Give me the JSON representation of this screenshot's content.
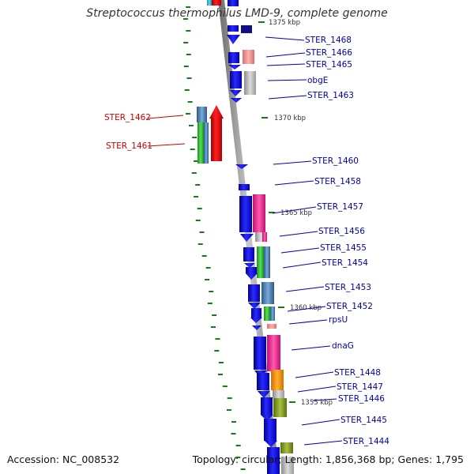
{
  "title": "Streptococcus thermophilus LMD-9, complete genome",
  "footer": {
    "accession": "Accession: NC_008532",
    "topology": "Topology: circular; Length: 1,856,368 bp; Genes: 1,795"
  },
  "ticks": [
    {
      "label": "1375 kbp"
    },
    {
      "label": "1370 kbp"
    },
    {
      "label": "1365 kbp"
    },
    {
      "label": "1360 kbp"
    },
    {
      "label": "1355 kbp"
    }
  ],
  "genes": [
    {
      "name": "STER_1468",
      "strand": "minus"
    },
    {
      "name": "STER_1466",
      "strand": "minus"
    },
    {
      "name": "STER_1465",
      "strand": "minus"
    },
    {
      "name": "obgE",
      "strand": "minus"
    },
    {
      "name": "STER_1463",
      "strand": "minus"
    },
    {
      "name": "STER_1462",
      "strand": "plus"
    },
    {
      "name": "STER_1461",
      "strand": "plus"
    },
    {
      "name": "STER_1460",
      "strand": "minus"
    },
    {
      "name": "STER_1458",
      "strand": "minus"
    },
    {
      "name": "STER_1457",
      "strand": "minus"
    },
    {
      "name": "STER_1456",
      "strand": "minus"
    },
    {
      "name": "STER_1455",
      "strand": "minus"
    },
    {
      "name": "STER_1454",
      "strand": "minus"
    },
    {
      "name": "STER_1453",
      "strand": "minus"
    },
    {
      "name": "STER_1452",
      "strand": "minus"
    },
    {
      "name": "rpsU",
      "strand": "minus"
    },
    {
      "name": "dnaG",
      "strand": "minus"
    },
    {
      "name": "STER_1448",
      "strand": "minus"
    },
    {
      "name": "STER_1447",
      "strand": "minus"
    },
    {
      "name": "STER_1446",
      "strand": "minus"
    },
    {
      "name": "STER_1445",
      "strand": "minus"
    },
    {
      "name": "STER_1444",
      "strand": "minus"
    }
  ],
  "colors": {
    "backbone": "#9a9a9a",
    "plus_label": "#cc0000",
    "minus_label": "#0000aa",
    "gene_blue": "#1515ee",
    "gc_dots": "#1a7a1a"
  }
}
